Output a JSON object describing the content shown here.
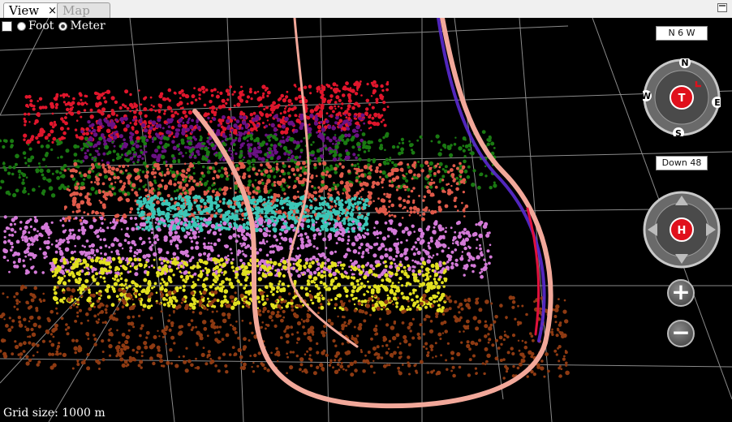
{
  "tabs": [
    {
      "label": "View",
      "close": "×",
      "active": true
    },
    {
      "label": "Map",
      "active": false
    }
  ],
  "units": {
    "foot_label": "Foot",
    "meter_label": "Meter",
    "selected": "Meter"
  },
  "grid_label": "Grid size: 1000 m",
  "compass": {
    "heading_text": "N 6 W",
    "center_label": "T",
    "letters": {
      "n": "N",
      "s": "S",
      "e": "E",
      "w": "W"
    }
  },
  "dip_text": "Down 48",
  "navpad": {
    "center_label": "H"
  },
  "zoom": {
    "in_label": "+",
    "out_label": "−"
  },
  "colors": {
    "background": "#000000",
    "well": "#f2a89a",
    "cloud_red": "#e0162c",
    "cloud_purple": "#6a1184",
    "cloud_green": "#1a7a12",
    "cloud_salmon": "#e05a4a",
    "cloud_cyan": "#3cc6b6",
    "cloud_violet": "#d47ad8",
    "cloud_yellow": "#e2e020",
    "cloud_brown": "#8e3a12",
    "compass_red": "#e0101c"
  }
}
